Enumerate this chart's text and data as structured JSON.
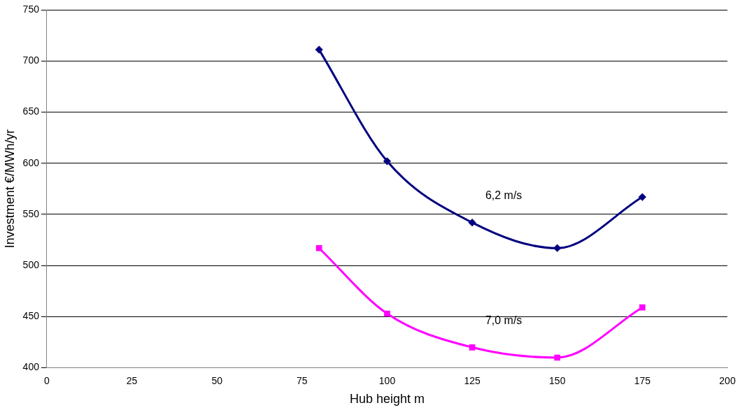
{
  "chart_data": {
    "type": "line",
    "xlabel": "Hub height m",
    "ylabel": "Investment €/MWh/yr",
    "x": [
      80,
      100,
      125,
      150,
      175
    ],
    "series": [
      {
        "name": "6,2 m/s",
        "color": "#000080",
        "marker": "diamond",
        "values": [
          711,
          602,
          542,
          517,
          567
        ]
      },
      {
        "name": "7,0 m/s",
        "color": "#ff00ff",
        "marker": "square",
        "values": [
          517,
          453,
          420,
          410,
          459
        ]
      }
    ],
    "xlim": [
      0,
      200
    ],
    "xticks": [
      0,
      25,
      50,
      75,
      100,
      125,
      150,
      175,
      200
    ],
    "ylim": [
      400,
      750
    ],
    "yticks": [
      400,
      450,
      500,
      550,
      600,
      650,
      700,
      750
    ],
    "grid": "y",
    "legend": false
  }
}
